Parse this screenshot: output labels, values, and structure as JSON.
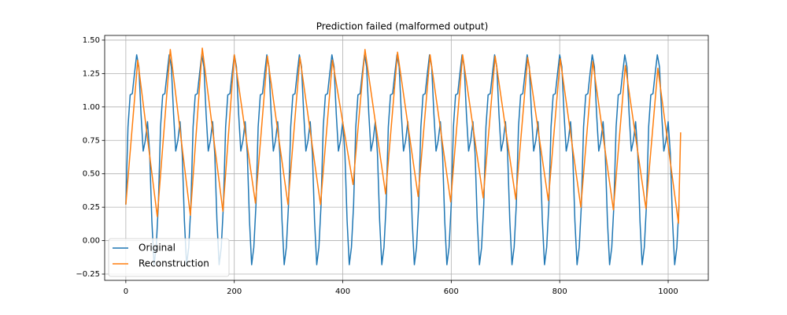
{
  "chart_data": {
    "type": "line",
    "title": "Prediction failed (malformed output)",
    "xlim": [
      -39,
      1074
    ],
    "ylim": [
      -0.297,
      1.535
    ],
    "xticks": [
      0,
      200,
      400,
      600,
      800,
      1000
    ],
    "yticks": [
      {
        "value": -0.25,
        "label": "−0.25"
      },
      {
        "value": 0,
        "label": "0.00"
      },
      {
        "value": 0.25,
        "label": "0.25"
      },
      {
        "value": 0.5,
        "label": "0.50"
      },
      {
        "value": 0.75,
        "label": "0.75"
      },
      {
        "value": 1.0,
        "label": "1.00"
      },
      {
        "value": 1.25,
        "label": "1.25"
      },
      {
        "value": 1.5,
        "label": "1.50"
      }
    ],
    "grid": true,
    "legend": "lower left",
    "series": [
      {
        "name": "Original",
        "color": "#1f77b4",
        "x": [
          0,
          4,
          8,
          12,
          16,
          20,
          24,
          28,
          32,
          36,
          40,
          44,
          48,
          52,
          56,
          60,
          64,
          68,
          72,
          76,
          80,
          84,
          88,
          92,
          96,
          100,
          104,
          108,
          112,
          116,
          120,
          124,
          128,
          132,
          136,
          140,
          144,
          148,
          152,
          156,
          160,
          164,
          168,
          172,
          176,
          180,
          184,
          188,
          192,
          196,
          200,
          204,
          208,
          212,
          216,
          220,
          224,
          228,
          232,
          236,
          240,
          244,
          248,
          252,
          256,
          260,
          264,
          268,
          272,
          276,
          280,
          284,
          288,
          292,
          296,
          300,
          304,
          308,
          312,
          316,
          320,
          324,
          328,
          332,
          336,
          340,
          344,
          348,
          352,
          356,
          360,
          364,
          368,
          372,
          376,
          380,
          384,
          388,
          392,
          396,
          400,
          404,
          408,
          412,
          416,
          420,
          424,
          428,
          432,
          436,
          440,
          444,
          448,
          452,
          456,
          460,
          464,
          468,
          472,
          476,
          480,
          484,
          488,
          492,
          496,
          500,
          504,
          508,
          512,
          516,
          520,
          524,
          528,
          532,
          536,
          540,
          544,
          548,
          552,
          556,
          560,
          564,
          568,
          572,
          576,
          580,
          584,
          588,
          592,
          596,
          600,
          604,
          608,
          612,
          616,
          620,
          624,
          628,
          632,
          636,
          640,
          644,
          648,
          652,
          656,
          660,
          664,
          668,
          672,
          676,
          680,
          684,
          688,
          692,
          696,
          700,
          704,
          708,
          712,
          716,
          720,
          724,
          728,
          732,
          736,
          740,
          744,
          748,
          752,
          756,
          760,
          764,
          768,
          772,
          776,
          780,
          784,
          788,
          792,
          796,
          800,
          804,
          808,
          812,
          816,
          820,
          824,
          828,
          832,
          836,
          840,
          844,
          848,
          852,
          856,
          860,
          864,
          868,
          872,
          876,
          880,
          884,
          888,
          892,
          896,
          900,
          904,
          908,
          912,
          916,
          920,
          924,
          928,
          932,
          936,
          940,
          944,
          948,
          952,
          956,
          960,
          964,
          968,
          972,
          976,
          980,
          984,
          988,
          992,
          996,
          1000,
          1004,
          1008,
          1012,
          1016,
          1020
        ],
        "values": [
          0.27,
          0.85,
          1.09,
          1.1,
          1.25,
          1.39,
          1.3,
          0.95,
          0.67,
          0.75,
          0.89,
          0.65,
          0.15,
          -0.18,
          -0.05,
          0.27,
          0.85,
          1.09,
          1.1,
          1.25,
          1.39,
          1.3,
          0.95,
          0.67,
          0.75,
          0.89,
          0.65,
          0.15,
          -0.18,
          -0.05,
          0.27,
          0.85,
          1.09,
          1.1,
          1.25,
          1.39,
          1.3,
          0.95,
          0.67,
          0.75,
          0.89,
          0.65,
          0.15,
          -0.18,
          -0.05,
          0.27,
          0.85,
          1.09,
          1.1,
          1.25,
          1.39,
          1.3,
          0.95,
          0.67,
          0.75,
          0.89,
          0.65,
          0.15,
          -0.18,
          -0.05,
          0.27,
          0.85,
          1.09,
          1.1,
          1.25,
          1.39,
          1.3,
          0.95,
          0.67,
          0.75,
          0.89,
          0.65,
          0.15,
          -0.18,
          -0.05,
          0.27,
          0.85,
          1.09,
          1.1,
          1.25,
          1.39,
          1.3,
          0.95,
          0.67,
          0.75,
          0.89,
          0.65,
          0.15,
          -0.18,
          -0.05,
          0.27,
          0.85,
          1.09,
          1.1,
          1.25,
          1.39,
          1.3,
          0.95,
          0.67,
          0.75,
          0.89,
          0.65,
          0.15,
          -0.18,
          -0.05,
          0.27,
          0.85,
          1.09,
          1.1,
          1.25,
          1.39,
          1.3,
          0.95,
          0.67,
          0.75,
          0.89,
          0.65,
          0.15,
          -0.18,
          -0.05,
          0.27,
          0.85,
          1.09,
          1.1,
          1.25,
          1.39,
          1.3,
          0.95,
          0.67,
          0.75,
          0.89,
          0.65,
          0.15,
          -0.18,
          -0.05,
          0.27,
          0.85,
          1.09,
          1.1,
          1.25,
          1.39,
          1.3,
          0.95,
          0.67,
          0.75,
          0.89,
          0.65,
          0.15,
          -0.18,
          -0.05,
          0.27,
          0.85,
          1.09,
          1.1,
          1.25,
          1.39,
          1.3,
          0.95,
          0.67,
          0.75,
          0.89,
          0.65,
          0.15,
          -0.18,
          -0.05,
          0.27,
          0.85,
          1.09,
          1.1,
          1.25,
          1.39,
          1.3,
          0.95,
          0.67,
          0.75,
          0.89,
          0.65,
          0.15,
          -0.18,
          -0.05,
          0.27,
          0.85,
          1.09,
          1.1,
          1.25,
          1.39,
          1.3,
          0.95,
          0.67,
          0.75,
          0.89,
          0.65,
          0.15,
          -0.18,
          -0.05,
          0.27,
          0.85,
          1.09,
          1.1,
          1.25,
          1.39,
          1.3,
          0.95,
          0.67,
          0.75,
          0.89,
          0.65,
          0.15,
          -0.18,
          -0.05,
          0.27,
          0.85,
          1.09,
          1.1,
          1.25,
          1.39,
          1.3,
          0.95,
          0.67,
          0.75,
          0.89,
          0.65,
          0.15,
          -0.18,
          -0.05,
          0.27,
          0.85,
          1.09,
          1.1,
          1.25,
          1.39,
          1.3,
          0.95,
          0.67,
          0.75,
          0.89,
          0.65,
          0.15,
          -0.18,
          -0.05,
          0.27,
          0.85,
          1.09,
          1.1,
          1.25,
          1.39,
          1.3,
          0.95,
          0.67,
          0.75,
          0.89,
          0.65,
          0.15,
          -0.18,
          -0.05,
          0.27
        ]
      },
      {
        "name": "Reconstruction",
        "color": "#ff7f0e",
        "x": [
          0,
          22,
          58,
          82,
          119,
          141,
          179,
          200,
          239,
          261,
          299,
          321,
          359,
          381,
          419,
          441,
          479,
          501,
          539,
          561,
          599,
          621,
          659,
          681,
          719,
          741,
          779,
          801,
          839,
          861,
          899,
          921,
          959,
          981,
          1019,
          1023
        ],
        "values": [
          0.27,
          1.35,
          0.18,
          1.43,
          0.19,
          1.44,
          0.22,
          1.39,
          0.28,
          1.38,
          0.27,
          1.37,
          0.27,
          1.35,
          0.42,
          1.43,
          0.35,
          1.41,
          0.33,
          1.39,
          0.29,
          1.39,
          0.32,
          1.38,
          0.31,
          1.37,
          0.3,
          1.36,
          0.25,
          1.34,
          0.23,
          1.31,
          0.24,
          1.29,
          0.13,
          0.81
        ]
      }
    ]
  }
}
